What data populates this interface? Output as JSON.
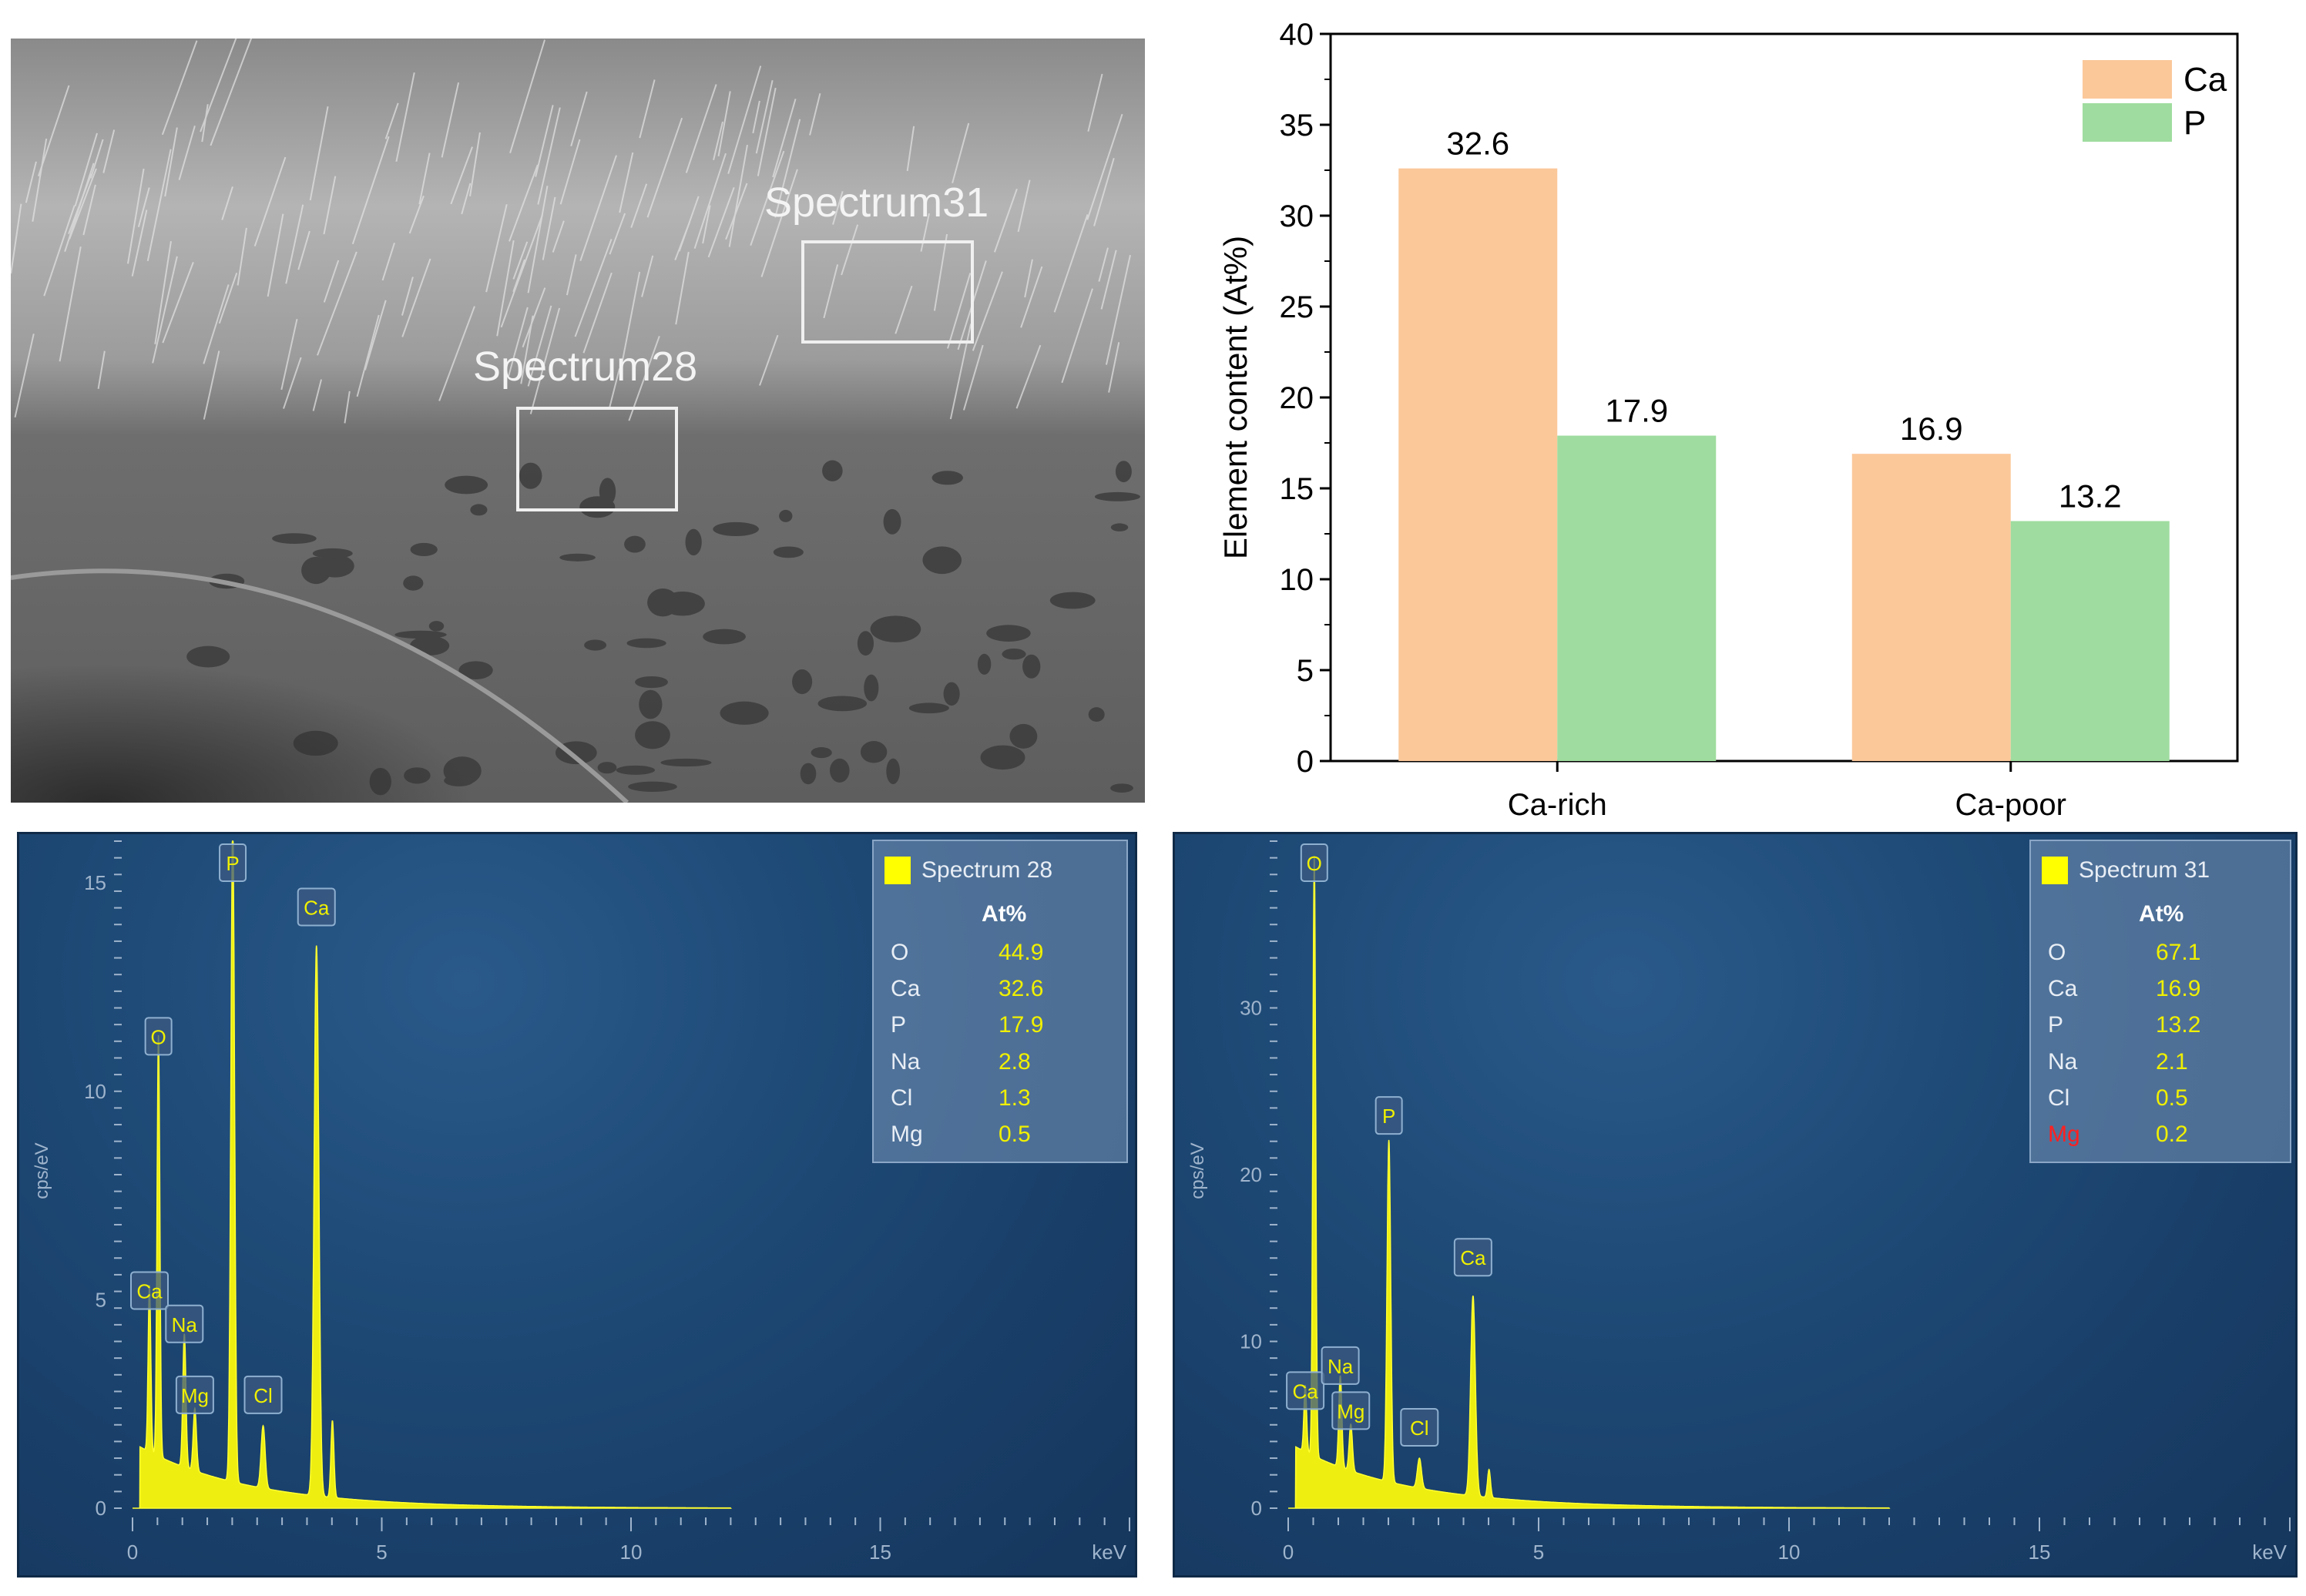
{
  "sem": {
    "labels": [
      "Spectrum31",
      "Spectrum28"
    ]
  },
  "chart_data": [
    {
      "type": "bar",
      "categories": [
        "Ca-rich",
        "Ca-poor"
      ],
      "series": [
        {
          "name": "Ca",
          "values": [
            32.6,
            16.9
          ],
          "color": "#fbc89a"
        },
        {
          "name": "P",
          "values": [
            17.9,
            13.2
          ],
          "color": "#9fdc9f"
        }
      ],
      "data_labels": [
        "32.6",
        "17.9",
        "16.9",
        "13.2"
      ],
      "ylabel": "Element content (At%)",
      "xlabel": "",
      "ylim": [
        0,
        40
      ],
      "yticks": [
        "0",
        "5",
        "10",
        "15",
        "20",
        "25",
        "30",
        "35",
        "40"
      ],
      "legend_position": "top-right",
      "grid": false
    },
    {
      "type": "line",
      "title": "Spectrum 28",
      "xlabel": "keV",
      "ylabel": "cps/eV",
      "xlim": [
        0,
        20
      ],
      "ylim": [
        0,
        16
      ],
      "xticks": [
        "0",
        "5",
        "10",
        "15"
      ],
      "yticks": [
        "0",
        "5",
        "10",
        "15"
      ],
      "peaks": [
        {
          "element": "Ca",
          "x": 0.34,
          "y": 4.0
        },
        {
          "element": "O",
          "x": 0.52,
          "y": 10.1
        },
        {
          "element": "Na",
          "x": 1.04,
          "y": 3.2
        },
        {
          "element": "Mg",
          "x": 1.25,
          "y": 1.5
        },
        {
          "element": "P",
          "x": 2.01,
          "y": 15.9
        },
        {
          "element": "Cl",
          "x": 2.62,
          "y": 1.5
        },
        {
          "element": "Ca",
          "x": 3.69,
          "y": 13.2
        }
      ],
      "table": {
        "header": "At%",
        "rows": [
          {
            "element": "O",
            "value": "44.9"
          },
          {
            "element": "Ca",
            "value": "32.6"
          },
          {
            "element": "P",
            "value": "17.9"
          },
          {
            "element": "Na",
            "value": "2.8"
          },
          {
            "element": "Cl",
            "value": "1.3"
          },
          {
            "element": "Mg",
            "value": "0.5"
          }
        ]
      }
    },
    {
      "type": "line",
      "title": "Spectrum 31",
      "xlabel": "keV",
      "ylabel": "cps/eV",
      "xlim": [
        0,
        20
      ],
      "ylim": [
        0,
        40
      ],
      "xticks": [
        "0",
        "5",
        "10",
        "15"
      ],
      "yticks": [
        "0",
        "10",
        "20",
        "30"
      ],
      "peaks": [
        {
          "element": "Ca",
          "x": 0.34,
          "y": 4.0
        },
        {
          "element": "O",
          "x": 0.52,
          "y": 36.0
        },
        {
          "element": "Na",
          "x": 1.04,
          "y": 5.5
        },
        {
          "element": "Mg",
          "x": 1.25,
          "y": 2.8
        },
        {
          "element": "P",
          "x": 2.01,
          "y": 20.5
        },
        {
          "element": "Cl",
          "x": 2.62,
          "y": 1.8
        },
        {
          "element": "Ca",
          "x": 3.69,
          "y": 12.0
        }
      ],
      "table": {
        "header": "At%",
        "rows": [
          {
            "element": "O",
            "value": "67.1"
          },
          {
            "element": "Ca",
            "value": "16.9"
          },
          {
            "element": "P",
            "value": "13.2"
          },
          {
            "element": "Na",
            "value": "2.1"
          },
          {
            "element": "Cl",
            "value": "0.5"
          },
          {
            "element": "Mg",
            "value": "0.2",
            "highlight": "#ff2020"
          }
        ]
      }
    }
  ]
}
